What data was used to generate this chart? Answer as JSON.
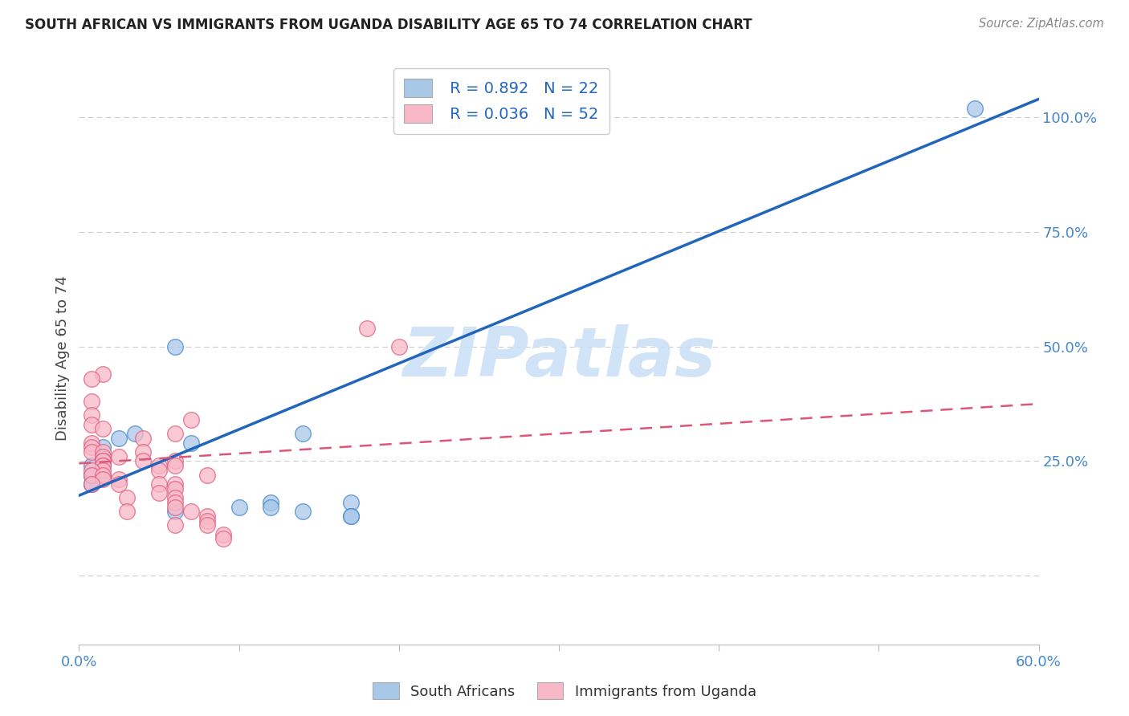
{
  "title": "SOUTH AFRICAN VS IMMIGRANTS FROM UGANDA DISABILITY AGE 65 TO 74 CORRELATION CHART",
  "source": "Source: ZipAtlas.com",
  "ylabel": "Disability Age 65 to 74",
  "xlim": [
    0.0,
    0.6
  ],
  "ylim": [
    -0.15,
    1.1
  ],
  "x_tick_positions": [
    0.0,
    0.1,
    0.2,
    0.3,
    0.4,
    0.5,
    0.6
  ],
  "x_tick_labels": [
    "0.0%",
    "",
    "",
    "",
    "",
    "",
    "60.0%"
  ],
  "y_tick_positions": [
    0.0,
    0.25,
    0.5,
    0.75,
    1.0
  ],
  "y_tick_labels": [
    "",
    "25.0%",
    "50.0%",
    "75.0%",
    "100.0%"
  ],
  "grid_color": "#cccccc",
  "background_color": "#ffffff",
  "watermark_text": "ZIPatlas",
  "blue_R": "0.892",
  "blue_N": "22",
  "pink_R": "0.036",
  "pink_N": "52",
  "blue_color": "#a8c8e8",
  "blue_edge_color": "#4488cc",
  "pink_color": "#f8b8c8",
  "pink_edge_color": "#e06080",
  "blue_line_color": "#2266bb",
  "pink_line_color": "#dd5577",
  "legend_label_blue": "South Africans",
  "legend_label_pink": "Immigrants from Uganda",
  "blue_scatter_x": [
    0.015,
    0.008,
    0.008,
    0.025,
    0.008,
    0.015,
    0.015,
    0.035,
    0.008,
    0.008,
    0.14,
    0.14,
    0.06,
    0.17,
    0.06,
    0.1,
    0.17,
    0.17,
    0.07,
    0.12,
    0.12,
    0.56
  ],
  "blue_scatter_y": [
    0.26,
    0.22,
    0.2,
    0.3,
    0.24,
    0.28,
    0.22,
    0.31,
    0.22,
    0.2,
    0.31,
    0.14,
    0.5,
    0.16,
    0.14,
    0.15,
    0.13,
    0.13,
    0.29,
    0.16,
    0.15,
    1.02
  ],
  "pink_scatter_x": [
    0.015,
    0.008,
    0.008,
    0.008,
    0.008,
    0.015,
    0.008,
    0.008,
    0.008,
    0.015,
    0.015,
    0.025,
    0.015,
    0.015,
    0.015,
    0.015,
    0.015,
    0.008,
    0.008,
    0.015,
    0.015,
    0.025,
    0.008,
    0.025,
    0.04,
    0.06,
    0.04,
    0.04,
    0.06,
    0.05,
    0.06,
    0.07,
    0.05,
    0.08,
    0.05,
    0.06,
    0.06,
    0.05,
    0.03,
    0.06,
    0.06,
    0.06,
    0.03,
    0.07,
    0.08,
    0.08,
    0.08,
    0.06,
    0.09,
    0.18,
    0.09,
    0.2
  ],
  "pink_scatter_y": [
    0.44,
    0.43,
    0.38,
    0.35,
    0.33,
    0.32,
    0.29,
    0.28,
    0.27,
    0.27,
    0.26,
    0.26,
    0.25,
    0.25,
    0.24,
    0.24,
    0.23,
    0.23,
    0.22,
    0.22,
    0.21,
    0.21,
    0.2,
    0.2,
    0.3,
    0.31,
    0.27,
    0.25,
    0.25,
    0.24,
    0.24,
    0.34,
    0.23,
    0.22,
    0.2,
    0.2,
    0.19,
    0.18,
    0.17,
    0.17,
    0.16,
    0.15,
    0.14,
    0.14,
    0.13,
    0.12,
    0.11,
    0.11,
    0.09,
    0.54,
    0.08,
    0.5
  ],
  "blue_trendline_x": [
    0.0,
    0.6
  ],
  "blue_trendline_y": [
    0.175,
    1.04
  ],
  "pink_trendline_x": [
    0.0,
    0.6
  ],
  "pink_trendline_y": [
    0.245,
    0.375
  ]
}
